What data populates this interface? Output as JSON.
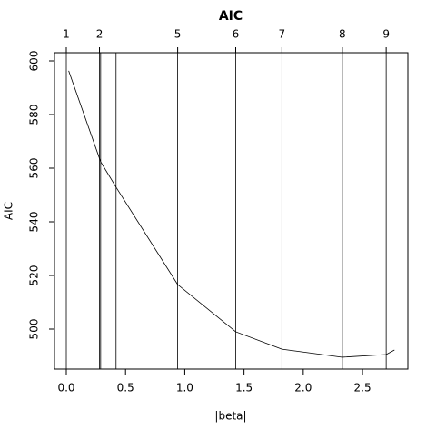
{
  "chart_data": {
    "type": "line",
    "title": "AIC",
    "xlabel": "|beta|",
    "ylabel": "AIC",
    "x": [
      0.02,
      0.29,
      0.42,
      0.94,
      1.43,
      1.82,
      2.33,
      2.7,
      2.77
    ],
    "values": [
      596.3,
      562.4,
      552.9,
      516.6,
      499.0,
      492.5,
      489.5,
      490.5,
      492.2
    ],
    "color": "#000000",
    "steps": {
      "x": [
        0,
        0.28,
        0.29,
        0.42,
        0.94,
        1.43,
        1.82,
        2.33,
        2.7
      ],
      "labels": [
        "1",
        "2",
        null,
        null,
        "5",
        "6",
        "7",
        "8",
        "9"
      ]
    },
    "xlim": [
      -0.0997,
      2.883
    ],
    "ylim": [
      485.08,
      603.05
    ],
    "xticks": [
      {
        "value": 0,
        "label": "0.0"
      },
      0.5,
      {
        "value": 1,
        "label": "1.0"
      },
      1.5,
      {
        "value": 2,
        "label": "2.0"
      },
      2.5
    ],
    "yticks": [
      500,
      520,
      540,
      560,
      580,
      600
    ]
  }
}
